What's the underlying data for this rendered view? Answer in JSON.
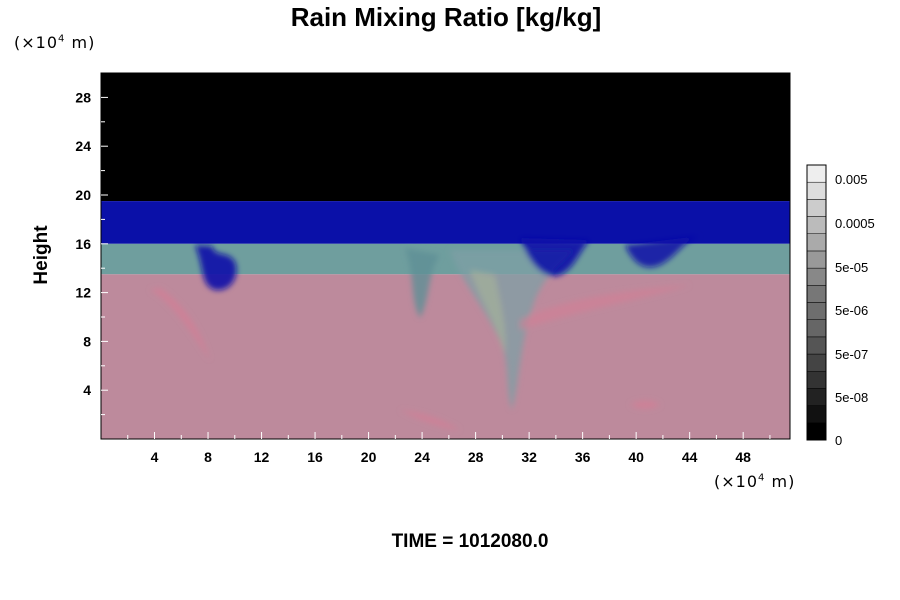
{
  "chart_data": {
    "type": "heatmap",
    "title": "Rain Mixing Ratio [kg/kg]",
    "ylabel": "Height",
    "x_unit": {
      "prefix": "(×10",
      "exp": "4",
      "suffix": " m)"
    },
    "y_unit": {
      "prefix": "(×10",
      "exp": "4",
      "suffix": " m)"
    },
    "xlim": [
      0,
      51.5
    ],
    "ylim": [
      0,
      30
    ],
    "x_ticks": [
      4,
      8,
      12,
      16,
      20,
      24,
      28,
      32,
      36,
      40,
      44,
      48
    ],
    "y_ticks": [
      4,
      8,
      12,
      16,
      20,
      24,
      28
    ],
    "tick_labels_x": [
      "4",
      "8",
      "12",
      "16",
      "20",
      "24",
      "28",
      "32",
      "36",
      "40",
      "44",
      "48"
    ],
    "tick_labels_y": [
      "4",
      "8",
      "12",
      "16",
      "20",
      "24",
      "28"
    ],
    "field_layers": [
      {
        "from": 19.5,
        "to": 30,
        "color": "#000000"
      },
      {
        "from": 16,
        "to": 19.5,
        "color": "#0a10a8"
      },
      {
        "from": 13.5,
        "to": 16,
        "color": "#6f9e9e"
      },
      {
        "from": 0,
        "to": 13.5,
        "color": "#bd8a9c"
      }
    ],
    "colorbar": {
      "labels": [
        "0.005",
        "0.0005",
        "5e-05",
        "5e-06",
        "5e-07",
        "5e-08",
        "0"
      ],
      "levels": 16,
      "colors": [
        "#000000",
        "#111111",
        "#222222",
        "#333333",
        "#444444",
        "#555555",
        "#666666",
        "#6e6e6e",
        "#777777",
        "#888888",
        "#999999",
        "#aaaaaa",
        "#bbbbbb",
        "#cccccc",
        "#dddddd",
        "#eeeeee"
      ]
    },
    "footer": "TIME = 1012080.0"
  }
}
